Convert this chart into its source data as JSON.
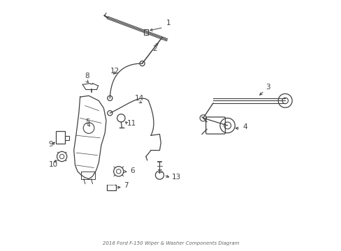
{
  "title": "2016 Ford F-150 Wiper & Washer Components Diagram",
  "bg_color": "#ffffff",
  "line_color": "#404040",
  "label_color": "#222222",
  "fig_width": 4.89,
  "fig_height": 3.6,
  "dpi": 100
}
